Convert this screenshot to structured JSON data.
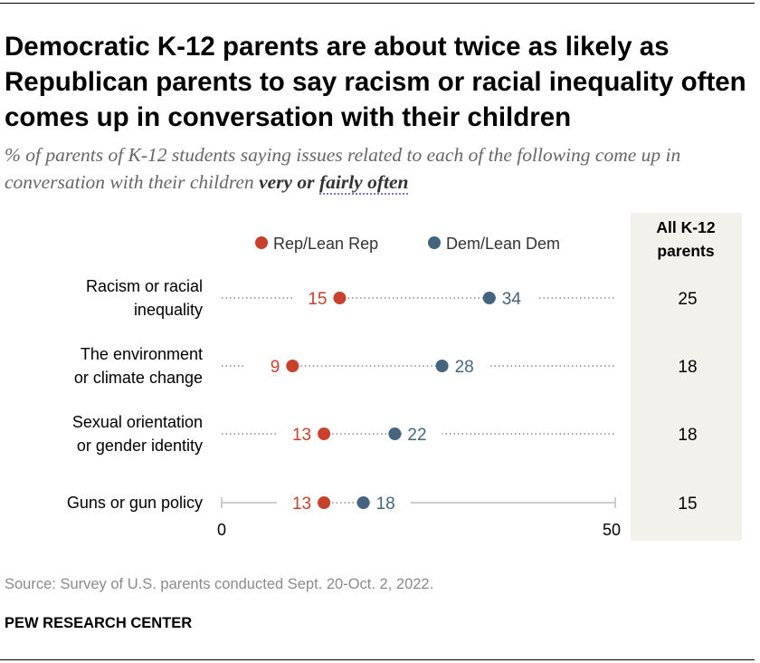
{
  "title": "Democratic K-12 parents are about twice as likely as Republican parents to say racism or racial inequality often comes up in conversation with their children",
  "subtitle": {
    "text": "% of parents of K-12 students saying issues related to each of the following come up in conversation with their children ",
    "emphasis": "very or ",
    "emphasis_dotted": "fairly often"
  },
  "source": "Source: Survey of U.S. parents conducted Sept. 20-Oct. 2, 2022.",
  "brand": "PEW RESEARCH CENTER",
  "chart_data": {
    "type": "dot",
    "title": "",
    "xlim": [
      0,
      50
    ],
    "x_ticks": [
      "0",
      "50"
    ],
    "legend": [
      "Rep/Lean Rep",
      "Dem/Lean Dem"
    ],
    "colors": {
      "rep": "#c8412c",
      "dem": "#45657f",
      "dots": "#a6a6a6",
      "panel": "#f3f1ec"
    },
    "total_header": [
      "All K-12",
      "parents"
    ],
    "categories": [
      [
        "Racism or racial",
        "inequality"
      ],
      [
        "The environment",
        "or climate change"
      ],
      [
        "Sexual orientation",
        "or gender identity"
      ],
      [
        "Guns or gun policy"
      ]
    ],
    "series": [
      {
        "name": "Rep/Lean Rep",
        "values": [
          15,
          9,
          13,
          13
        ]
      },
      {
        "name": "Dem/Lean Dem",
        "values": [
          34,
          28,
          22,
          18
        ]
      }
    ],
    "totals": [
      25,
      18,
      18,
      15
    ]
  }
}
